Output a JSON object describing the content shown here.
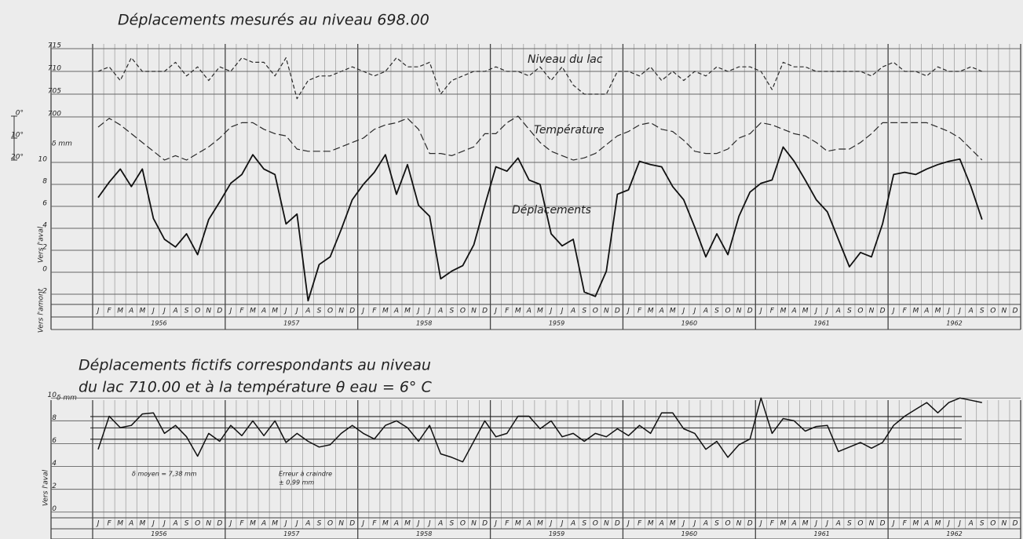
{
  "chart_data": [
    {
      "type": "line",
      "title": "Déplacements mesurés au niveau 698.00",
      "ylabel": "δ mm",
      "side_labels": [
        "Vers l'aval",
        "Vers l'amont"
      ],
      "categories": [
        "J",
        "F",
        "M",
        "A",
        "M",
        "J",
        "J",
        "A",
        "S",
        "O",
        "N",
        "D",
        "J",
        "F",
        "M",
        "A",
        "M",
        "J",
        "J",
        "A",
        "S",
        "O",
        "N",
        "D",
        "J",
        "F",
        "M",
        "A",
        "M",
        "J",
        "J",
        "A",
        "S",
        "O",
        "N",
        "D",
        "J",
        "F",
        "M",
        "A",
        "M",
        "J",
        "J",
        "A",
        "S",
        "O",
        "N",
        "D",
        "J",
        "F",
        "M",
        "A",
        "M",
        "J",
        "J",
        "A",
        "S",
        "O",
        "N",
        "D",
        "J",
        "F",
        "M",
        "A",
        "M",
        "J",
        "J",
        "A",
        "S",
        "O",
        "N",
        "D",
        "J",
        "F",
        "M",
        "A",
        "M",
        "J",
        "J",
        "A",
        "S",
        "O",
        "N",
        "D"
      ],
      "years": [
        "1956",
        "1957",
        "1958",
        "1959",
        "1960",
        "1961",
        "1962"
      ],
      "grid": true,
      "series": [
        {
          "name": "Niveau du lac",
          "color": "#2a2a2a",
          "style": "dashed",
          "ylim": [
            700,
            715
          ],
          "yticks": [
            700,
            705,
            710,
            715
          ],
          "values": [
            710,
            711,
            708,
            713,
            710,
            710,
            710,
            712,
            709,
            711,
            708,
            711,
            710,
            713,
            712,
            712,
            709,
            713,
            704,
            708,
            709,
            709,
            710,
            711,
            710,
            709,
            710,
            713,
            711,
            711,
            712,
            705,
            708,
            709,
            710,
            710,
            711,
            710,
            710,
            709,
            711,
            708,
            711,
            707,
            705,
            705,
            705,
            710,
            710,
            709,
            711,
            708,
            710,
            708,
            710,
            709,
            711,
            710,
            711,
            711,
            710,
            706,
            712,
            711,
            711,
            710,
            710,
            710,
            710,
            710,
            709,
            711,
            712,
            710,
            710,
            709,
            711,
            710,
            710,
            711,
            710,
            null,
            null,
            null
          ]
        },
        {
          "name": "Température",
          "color": "#2a2a2a",
          "style": "long-dashed",
          "ylim": [
            20,
            0
          ],
          "yticks": [
            {
              "value": 0,
              "label": "0°"
            },
            {
              "value": 10,
              "label": "10°"
            },
            {
              "value": 20,
              "label": "20°"
            }
          ],
          "values": [
            5,
            1,
            4,
            8,
            12,
            16,
            20,
            18,
            20,
            17,
            14,
            10,
            5,
            3,
            3,
            6,
            8,
            9,
            15,
            16,
            16,
            16,
            14,
            12,
            10,
            6,
            4,
            3,
            1,
            6,
            17,
            17,
            18,
            16,
            14,
            8,
            8,
            3,
            0,
            6,
            12,
            16,
            18,
            20,
            19,
            17,
            13,
            9,
            7,
            4,
            3,
            6,
            7,
            11,
            16,
            17,
            17,
            15,
            10,
            8,
            3,
            4,
            6,
            8,
            9,
            12,
            16,
            15,
            15,
            12,
            8,
            3,
            3,
            3,
            3,
            3,
            5,
            7,
            10,
            15,
            20,
            null,
            null,
            null
          ]
        },
        {
          "name": "Déplacements",
          "color": "#111111",
          "style": "solid",
          "ylim": [
            -3,
            12
          ],
          "yticks": [
            {
              "value": -2,
              "label": "2"
            },
            0,
            2,
            4,
            6,
            8,
            10
          ],
          "values": [
            6.8,
            8.2,
            9.4,
            7.8,
            9.4,
            4.9,
            3.0,
            2.3,
            3.5,
            1.6,
            4.8,
            6.4,
            8.1,
            8.9,
            10.7,
            9.4,
            8.9,
            4.4,
            5.3,
            -2.6,
            0.7,
            1.4,
            3.9,
            6.6,
            8.0,
            9.1,
            10.7,
            7.1,
            9.8,
            6.1,
            5.1,
            -0.6,
            0.1,
            0.6,
            2.5,
            6.1,
            9.6,
            9.2,
            10.4,
            8.4,
            8.0,
            3.5,
            2.4,
            3.0,
            -1.8,
            -2.2,
            0.1,
            7.1,
            7.5,
            10.1,
            9.8,
            9.6,
            7.8,
            6.6,
            4.1,
            1.4,
            3.5,
            1.6,
            5.1,
            7.3,
            8.1,
            8.4,
            11.4,
            10.1,
            8.4,
            6.6,
            5.5,
            3.0,
            0.5,
            1.8,
            1.4,
            4.4,
            8.9,
            9.1,
            8.9,
            9.4,
            9.8,
            10.1,
            10.3,
            7.8,
            4.8,
            null,
            null,
            null
          ]
        }
      ]
    },
    {
      "type": "line",
      "title": [
        "Déplacements fictifs correspondants au niveau",
        "du lac 710.00 et à la température θ eau = 6° C"
      ],
      "ylabel": "δ mm",
      "side_labels": [
        "Vers l'aval"
      ],
      "categories": [
        "J",
        "F",
        "M",
        "A",
        "M",
        "J",
        "J",
        "A",
        "S",
        "O",
        "N",
        "D",
        "J",
        "F",
        "M",
        "A",
        "M",
        "J",
        "J",
        "A",
        "S",
        "O",
        "N",
        "D",
        "J",
        "F",
        "M",
        "A",
        "M",
        "J",
        "J",
        "A",
        "S",
        "O",
        "N",
        "D",
        "J",
        "F",
        "M",
        "A",
        "M",
        "J",
        "J",
        "A",
        "S",
        "O",
        "N",
        "D",
        "J",
        "F",
        "M",
        "A",
        "M",
        "J",
        "J",
        "A",
        "S",
        "O",
        "N",
        "D",
        "J",
        "F",
        "M",
        "A",
        "M",
        "J",
        "J",
        "A",
        "S",
        "O",
        "N",
        "D",
        "J",
        "F",
        "M",
        "A",
        "M",
        "J",
        "J",
        "A",
        "S",
        "O",
        "N",
        "D"
      ],
      "years": [
        "1956",
        "1957",
        "1958",
        "1959",
        "1960",
        "1961",
        "1962"
      ],
      "grid": true,
      "color": "#111111",
      "ylim": [
        -0.5,
        10.5
      ],
      "yticks": [
        0,
        2,
        4,
        6,
        8,
        10
      ],
      "reference": {
        "value": 7.38,
        "label": "δ moyen = 7,38 mm",
        "error": 0.99,
        "error_label": [
          "Erreur à craindre",
          "± 0,99 mm"
        ]
      },
      "values": [
        5.5,
        8.4,
        7.4,
        7.6,
        8.6,
        8.7,
        6.9,
        7.6,
        6.6,
        4.9,
        6.9,
        6.2,
        7.6,
        6.7,
        8.0,
        6.7,
        8.0,
        6.1,
        6.9,
        6.2,
        5.7,
        5.9,
        6.9,
        7.6,
        6.9,
        6.4,
        7.6,
        8.0,
        7.4,
        6.2,
        7.6,
        5.1,
        4.8,
        4.4,
        6.2,
        8.0,
        6.6,
        6.9,
        8.4,
        8.4,
        7.3,
        8.0,
        6.6,
        6.9,
        6.2,
        6.9,
        6.6,
        7.3,
        6.7,
        7.6,
        6.9,
        8.7,
        8.7,
        7.3,
        6.9,
        5.5,
        6.2,
        4.8,
        5.9,
        6.4,
        10.0,
        6.9,
        8.2,
        8.0,
        7.1,
        7.5,
        7.6,
        5.3,
        5.7,
        6.1,
        5.6,
        6.1,
        7.6,
        8.4,
        9.0,
        9.6,
        8.7,
        9.6,
        10.0,
        9.8,
        9.6,
        null,
        null,
        null
      ]
    }
  ]
}
